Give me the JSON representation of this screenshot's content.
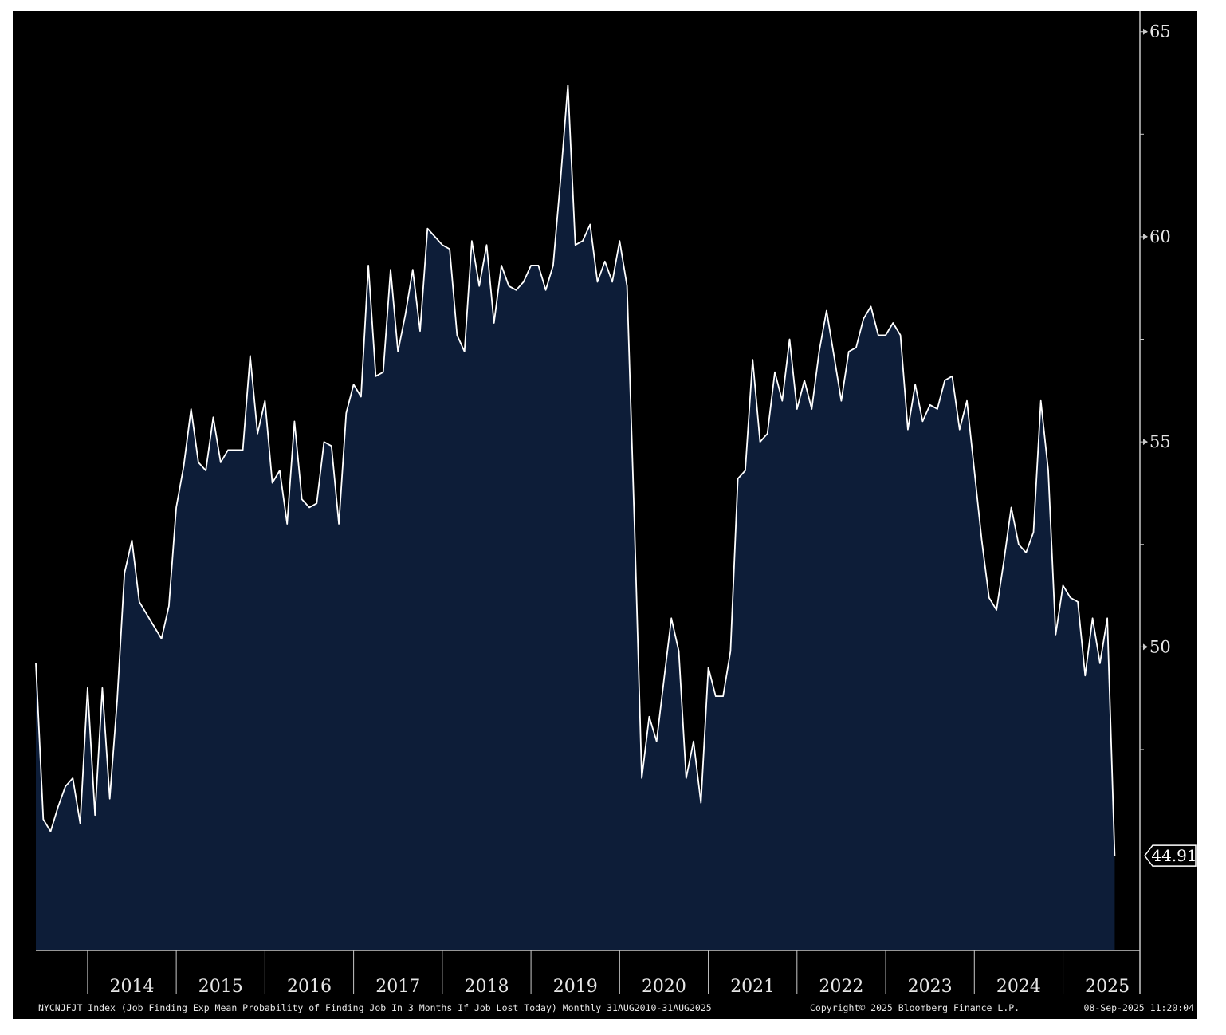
{
  "chart_data": {
    "type": "area",
    "x_tick_labels": [
      "2014",
      "2015",
      "2016",
      "2017",
      "2018",
      "2019",
      "2020",
      "2021",
      "2022",
      "2023",
      "2024",
      "2025"
    ],
    "y_ticks": [
      50,
      55,
      60,
      65
    ],
    "ylim": [
      42.6,
      65.5
    ],
    "grid": false,
    "colors": {
      "line": "#ffffff",
      "fill": "#0d1d38",
      "background": "#000000",
      "axis": "#c8c8c8"
    },
    "last_value_label": "44.91",
    "footer": {
      "description": "NYCNJFJT Index (Job Finding Exp Mean Probability of Finding Job In 3 Months If Job Lost Today) Monthly 31AUG2010-31AUG2025",
      "copyright": "Copyright© 2025 Bloomberg Finance L.P.",
      "timestamp": "08-Sep-2025 11:20:04"
    },
    "series": [
      {
        "x": [
          "2013-06",
          "2013-07",
          "2013-08",
          "2013-09",
          "2013-10",
          "2013-11",
          "2013-12",
          "2014-01",
          "2014-02",
          "2014-03",
          "2014-04",
          "2014-05",
          "2014-06",
          "2014-07",
          "2014-08",
          "2014-09",
          "2014-10",
          "2014-11",
          "2014-12",
          "2015-01",
          "2015-02",
          "2015-03",
          "2015-04",
          "2015-05",
          "2015-06",
          "2015-07",
          "2015-08",
          "2015-09",
          "2015-10",
          "2015-11",
          "2015-12",
          "2016-01",
          "2016-02",
          "2016-03",
          "2016-04",
          "2016-05",
          "2016-06",
          "2016-07",
          "2016-08",
          "2016-09",
          "2016-10",
          "2016-11",
          "2016-12",
          "2017-01",
          "2017-02",
          "2017-03",
          "2017-04",
          "2017-05",
          "2017-06",
          "2017-07",
          "2017-08",
          "2017-09",
          "2017-10",
          "2017-11",
          "2017-12",
          "2018-01",
          "2018-02",
          "2018-03",
          "2018-04",
          "2018-05",
          "2018-06",
          "2018-07",
          "2018-08",
          "2018-09",
          "2018-10",
          "2018-11",
          "2018-12",
          "2019-01",
          "2019-02",
          "2019-03",
          "2019-04",
          "2019-05",
          "2019-06",
          "2019-07",
          "2019-08",
          "2019-09",
          "2019-10",
          "2019-11",
          "2019-12",
          "2020-01",
          "2020-02",
          "2020-03",
          "2020-04",
          "2020-05",
          "2020-06",
          "2020-07",
          "2020-08",
          "2020-09",
          "2020-10",
          "2020-11",
          "2020-12",
          "2021-01",
          "2021-02",
          "2021-03",
          "2021-04",
          "2021-05",
          "2021-06",
          "2021-07",
          "2021-08",
          "2021-09",
          "2021-10",
          "2021-11",
          "2021-12",
          "2022-01",
          "2022-02",
          "2022-03",
          "2022-04",
          "2022-05",
          "2022-06",
          "2022-07",
          "2022-08",
          "2022-09",
          "2022-10",
          "2022-11",
          "2022-12",
          "2023-01",
          "2023-02",
          "2023-03",
          "2023-04",
          "2023-05",
          "2023-06",
          "2023-07",
          "2023-08",
          "2023-09",
          "2023-10",
          "2023-11",
          "2023-12",
          "2024-01",
          "2024-02",
          "2024-03",
          "2024-04",
          "2024-05",
          "2024-06",
          "2024-07",
          "2024-08",
          "2024-09",
          "2024-10",
          "2024-11",
          "2024-12",
          "2025-01",
          "2025-02",
          "2025-03",
          "2025-04",
          "2025-05",
          "2025-06",
          "2025-07",
          "2025-08"
        ],
        "values": [
          49.6,
          45.8,
          45.5,
          46.1,
          46.6,
          46.8,
          45.7,
          49.0,
          45.9,
          49.0,
          46.3,
          48.7,
          51.8,
          52.6,
          51.1,
          50.8,
          50.5,
          50.2,
          51.0,
          53.4,
          54.4,
          55.8,
          54.5,
          54.3,
          55.6,
          54.5,
          54.8,
          54.8,
          54.8,
          57.1,
          55.2,
          56.0,
          54.0,
          54.3,
          53.0,
          55.5,
          53.6,
          53.4,
          53.5,
          55.0,
          54.9,
          53.0,
          55.7,
          56.4,
          56.1,
          59.3,
          56.6,
          56.7,
          59.2,
          57.2,
          58.1,
          59.2,
          57.7,
          60.2,
          60.0,
          59.8,
          59.7,
          57.6,
          57.2,
          59.9,
          58.8,
          59.8,
          57.9,
          59.3,
          58.8,
          58.7,
          58.9,
          59.3,
          59.3,
          58.7,
          59.3,
          61.4,
          63.7,
          59.8,
          59.9,
          60.3,
          58.9,
          59.4,
          58.9,
          59.9,
          58.8,
          53.0,
          46.8,
          48.3,
          47.7,
          49.2,
          50.7,
          49.9,
          46.8,
          47.7,
          46.2,
          49.5,
          48.8,
          48.8,
          49.9,
          54.1,
          54.3,
          57.0,
          55.0,
          55.2,
          56.7,
          56.0,
          57.5,
          55.8,
          56.5,
          55.8,
          57.2,
          58.2,
          57.1,
          56.0,
          57.2,
          57.3,
          58.0,
          58.3,
          57.6,
          57.6,
          57.9,
          57.6,
          55.3,
          56.4,
          55.5,
          55.9,
          55.8,
          56.5,
          56.6,
          55.3,
          56.0,
          54.3,
          52.6,
          51.2,
          50.9,
          52.1,
          53.4,
          52.5,
          52.3,
          52.8,
          56.0,
          54.3,
          50.3,
          51.5,
          51.2,
          51.1,
          49.3,
          50.7,
          49.6,
          50.7,
          44.91
        ]
      }
    ]
  }
}
